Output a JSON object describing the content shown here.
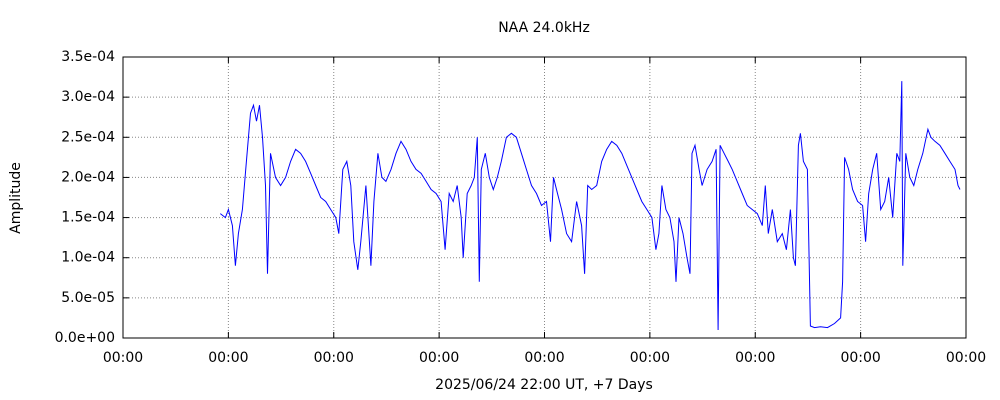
{
  "chart_data": {
    "type": "line",
    "title": "NAA 24.0kHz",
    "xlabel": "2025/06/24 22:00 UT, +7 Days",
    "ylabel": "Amplitude",
    "grid": true,
    "xlim": [
      0,
      168
    ],
    "xticks": [
      {
        "value": 0,
        "label": "00:00"
      },
      {
        "value": 21,
        "label": "00:00"
      },
      {
        "value": 42,
        "label": "00:00"
      },
      {
        "value": 63,
        "label": "00:00"
      },
      {
        "value": 84,
        "label": "00:00"
      },
      {
        "value": 105,
        "label": "00:00"
      },
      {
        "value": 126,
        "label": "00:00"
      },
      {
        "value": 147,
        "label": "00:00"
      },
      {
        "value": 168,
        "label": "00:00"
      }
    ],
    "ylim": [
      0,
      0.00035
    ],
    "yticks": [
      {
        "value": 0,
        "label": "0.0e+00"
      },
      {
        "value": 5e-05,
        "label": "5.0e-05"
      },
      {
        "value": 0.0001,
        "label": "1.0e-04"
      },
      {
        "value": 0.00015,
        "label": "1.5e-04"
      },
      {
        "value": 0.0002,
        "label": "2.0e-04"
      },
      {
        "value": 0.00025,
        "label": "2.5e-04"
      },
      {
        "value": 0.0003,
        "label": "3.0e-04"
      },
      {
        "value": 0.00035,
        "label": "3.5e-04"
      }
    ],
    "x": [
      19.4,
      20.4,
      21,
      21.8,
      22.4,
      23,
      23.8,
      24.6,
      25.4,
      26,
      26.6,
      27.2,
      27.8,
      28.4,
      28.8,
      29.4,
      30.4,
      31.4,
      32.4,
      33.4,
      34.4,
      35.4,
      36.4,
      37.4,
      38.4,
      39.4,
      40.4,
      41.4,
      42.4,
      43,
      43.8,
      44.6,
      45.4,
      46,
      46.8,
      47.4,
      48.4,
      49.4,
      50,
      50.8,
      51.6,
      52.4,
      53.4,
      54.4,
      55.4,
      56.4,
      57.4,
      58.4,
      59.4,
      60.4,
      61.4,
      62.4,
      63.4,
      64.2,
      65,
      65.8,
      66.6,
      67.4,
      67.8,
      68.6,
      69.4,
      70,
      70.6,
      71,
      71.4,
      72.2,
      73,
      73.8,
      74.6,
      75.4,
      76.4,
      77.4,
      78.4,
      79.4,
      80.4,
      81.4,
      82.4,
      83.4,
      84.4,
      85.2,
      85.8,
      86.6,
      87.4,
      88.4,
      89.4,
      90.4,
      91.4,
      92,
      92.6,
      93.4,
      94.4,
      95.4,
      96.4,
      97.4,
      98.4,
      99.4,
      100.4,
      101.4,
      102.4,
      103.4,
      104.4,
      105.4,
      106.2,
      106.8,
      107.4,
      108.2,
      109,
      109.8,
      110.2,
      110.8,
      111.6,
      112.4,
      113,
      113.4,
      114,
      114.8,
      115.4,
      116.4,
      117.4,
      118.2,
      118.6,
      119,
      119.8,
      120.6,
      121.4,
      122.4,
      123.4,
      124.4,
      125.4,
      126.4,
      127.4,
      128,
      128.6,
      129.4,
      130.4,
      131.4,
      132.2,
      133,
      133.6,
      134,
      134.6,
      135,
      135.6,
      136.4,
      137,
      137.8,
      139,
      140.4,
      141.8,
      143,
      143.4,
      143.8,
      144.6,
      145.4,
      146.4,
      147.4,
      148,
      148.6,
      149.4,
      150.2,
      151,
      151.8,
      152.6,
      153.4,
      154.2,
      154.8,
      155.2,
      155.4,
      156,
      156.8,
      157.6,
      158.4,
      159.4,
      160.4,
      161,
      161.8,
      162.8,
      163.8,
      164.8,
      165.8,
      166.4,
      166.8
    ],
    "series": [
      {
        "color": "#0000ff",
        "values": [
          0.000155,
          0.00015,
          0.00016,
          0.00014,
          9e-05,
          0.00013,
          0.00016,
          0.00022,
          0.00028,
          0.00029,
          0.00027,
          0.00029,
          0.00025,
          0.00019,
          8e-05,
          0.00023,
          0.0002,
          0.00019,
          0.0002,
          0.00022,
          0.000235,
          0.00023,
          0.00022,
          0.000205,
          0.00019,
          0.000175,
          0.00017,
          0.00016,
          0.00015,
          0.00013,
          0.00021,
          0.00022,
          0.00019,
          0.00012,
          8.5e-05,
          0.00012,
          0.00019,
          9e-05,
          0.00017,
          0.00023,
          0.0002,
          0.000195,
          0.00021,
          0.00023,
          0.000245,
          0.000235,
          0.00022,
          0.00021,
          0.000205,
          0.000195,
          0.000185,
          0.00018,
          0.00017,
          0.00011,
          0.00018,
          0.00017,
          0.00019,
          0.00015,
          0.0001,
          0.00018,
          0.00019,
          0.0002,
          0.00025,
          7e-05,
          0.00021,
          0.00023,
          0.0002,
          0.000185,
          0.0002,
          0.00022,
          0.00025,
          0.000255,
          0.00025,
          0.00023,
          0.00021,
          0.00019,
          0.00018,
          0.000165,
          0.00017,
          0.00012,
          0.0002,
          0.00018,
          0.00016,
          0.00013,
          0.00012,
          0.00017,
          0.00014,
          8e-05,
          0.00019,
          0.000185,
          0.00019,
          0.00022,
          0.000235,
          0.000245,
          0.00024,
          0.00023,
          0.000215,
          0.0002,
          0.000185,
          0.00017,
          0.00016,
          0.00015,
          0.00011,
          0.00013,
          0.00019,
          0.00016,
          0.00015,
          0.00012,
          7e-05,
          0.00015,
          0.00013,
          0.0001,
          8e-05,
          0.00023,
          0.00024,
          0.00021,
          0.00019,
          0.00021,
          0.00022,
          0.000235,
          1e-05,
          0.00024,
          0.00023,
          0.00022,
          0.00021,
          0.000195,
          0.00018,
          0.000165,
          0.00016,
          0.000155,
          0.00014,
          0.00019,
          0.00013,
          0.00016,
          0.00012,
          0.00013,
          0.00011,
          0.00016,
          0.0001,
          9e-05,
          0.00024,
          0.000255,
          0.00022,
          0.00021,
          1.5e-05,
          1.3e-05,
          1.4e-05,
          1.3e-05,
          1.8e-05,
          2.5e-05,
          7e-05,
          0.000225,
          0.00021,
          0.000185,
          0.00017,
          0.000165,
          0.00012,
          0.00018,
          0.00021,
          0.00023,
          0.00016,
          0.00017,
          0.0002,
          0.00015,
          0.00023,
          0.00022,
          0.00032,
          9e-05,
          0.00023,
          0.0002,
          0.00019,
          0.00021,
          0.00023,
          0.00026,
          0.00025,
          0.000245,
          0.00024,
          0.00023,
          0.00022,
          0.00021,
          0.00019,
          0.000185
        ]
      }
    ]
  }
}
